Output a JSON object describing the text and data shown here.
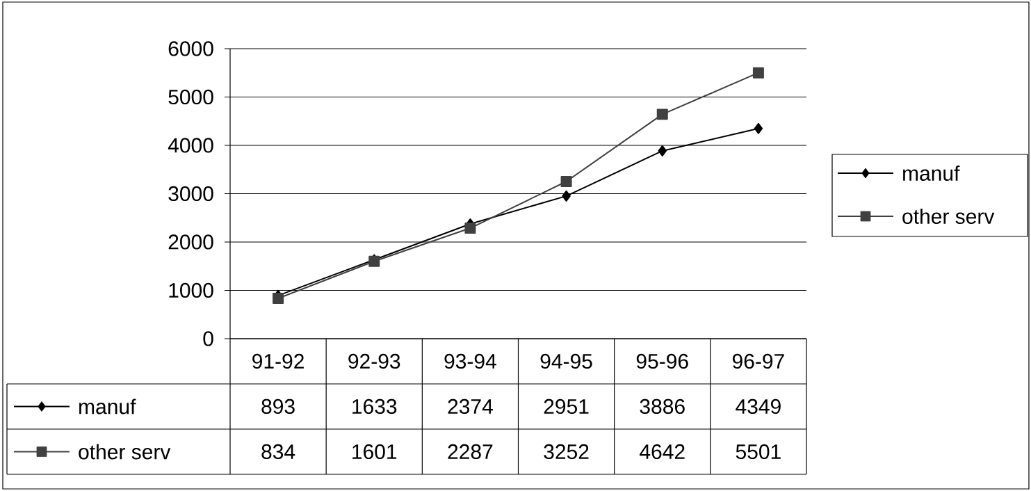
{
  "chart_data": {
    "type": "line",
    "categories": [
      "91-92",
      "92-93",
      "93-94",
      "94-95",
      "95-96",
      "96-97"
    ],
    "series": [
      {
        "name": "manuf",
        "color": "#000000",
        "marker": "diamond",
        "values": [
          893,
          1633,
          2374,
          2951,
          3886,
          4349
        ]
      },
      {
        "name": "other serv",
        "color": "#404040",
        "marker": "square",
        "values": [
          834,
          1601,
          2287,
          3252,
          4642,
          5501
        ]
      }
    ],
    "ylim": [
      0,
      6000
    ],
    "yticks": [
      0,
      1000,
      2000,
      3000,
      4000,
      5000,
      6000
    ],
    "grid": "y",
    "legend": "right",
    "data_labels": true
  }
}
